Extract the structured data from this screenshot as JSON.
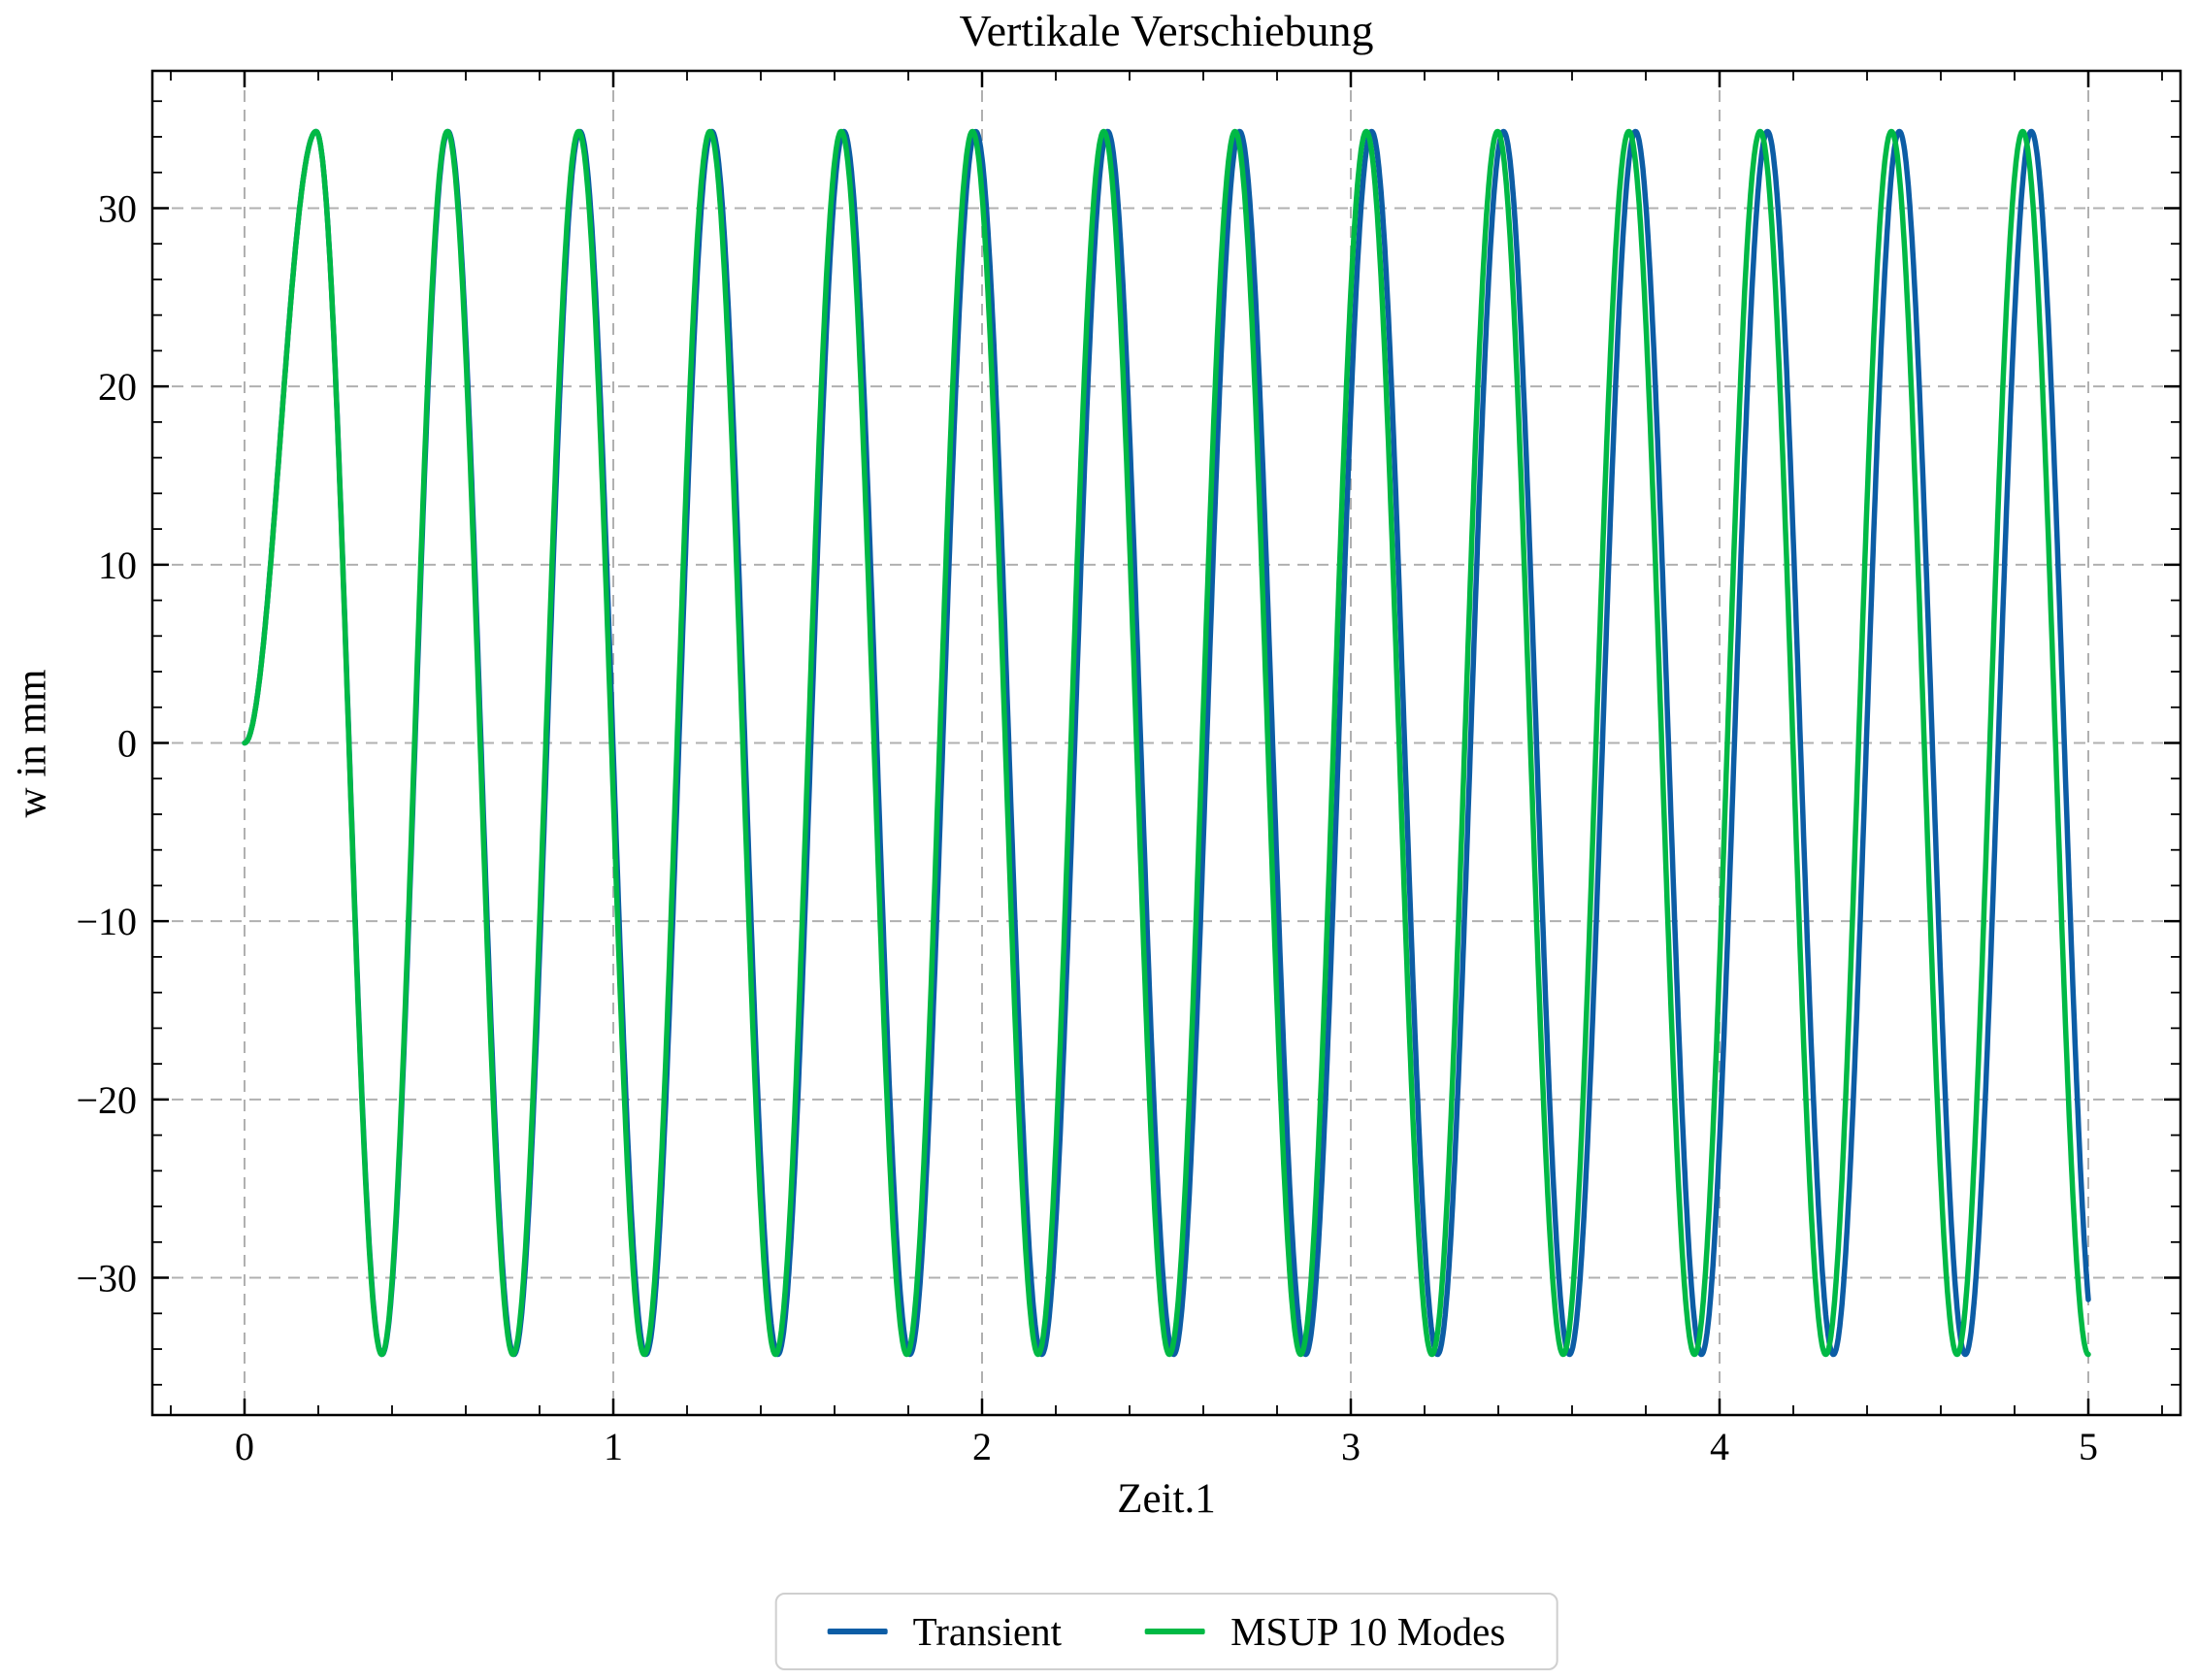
{
  "figure": {
    "background": "#ffffff"
  },
  "chart_data": {
    "type": "line",
    "title": "Vertikale Verschiebung",
    "xlabel": "Zeit.1",
    "ylabel": "w in mm",
    "xlim": [
      -0.25,
      5.25
    ],
    "ylim": [
      -37.7,
      37.7
    ],
    "x_major_ticks": [
      0,
      1,
      2,
      3,
      4,
      5
    ],
    "x_minor_step": 0.2,
    "y_major_ticks": [
      -30,
      -20,
      -10,
      0,
      10,
      20,
      30
    ],
    "y_minor_step": 2,
    "grid": {
      "show": true,
      "on": "major",
      "line_style": "dashed",
      "color": "#b0b0b0"
    },
    "ticks": {
      "direction": "in",
      "all_four_spines": true
    },
    "legend": {
      "position": "below-center",
      "entries": [
        "Transient",
        "MSUP 10 Modes"
      ]
    },
    "series": [
      {
        "name": "Transient",
        "color": "#0C5DA5",
        "model": {
          "kind": "ramped_cosine_oscillation",
          "description": "starts at w=0 with zero slope, smooth half-cosine ramp up to first peak, then steady cosine oscillation",
          "amplitude_mm": 34.3,
          "first_peak_t": 0.194,
          "period_s": 0.3578,
          "t_start": 0,
          "t_end": 5
        }
      },
      {
        "name": "MSUP 10 Modes",
        "color": "#00B945",
        "model": {
          "kind": "ramped_cosine_oscillation",
          "description": "identical ramp and amplitude, marginally shorter period so it drifts ahead of Transient",
          "amplitude_mm": 34.3,
          "first_peak_t": 0.194,
          "period_s": 0.356,
          "t_start": 0,
          "t_end": 5
        }
      }
    ],
    "readings": {
      "amplitude_mm": 34.3,
      "first_peak": {
        "t": 0.19,
        "w": 34.3
      },
      "first_trough": {
        "t": 0.37,
        "w": -34.3
      },
      "cycles_visible": 14,
      "phase_note": "MSUP 10 Modes leads Transient by about 0.025 s near t = 4.8; curves end at t = 5 around w = -32 (Transient) and w = -34 (MSUP)"
    }
  }
}
